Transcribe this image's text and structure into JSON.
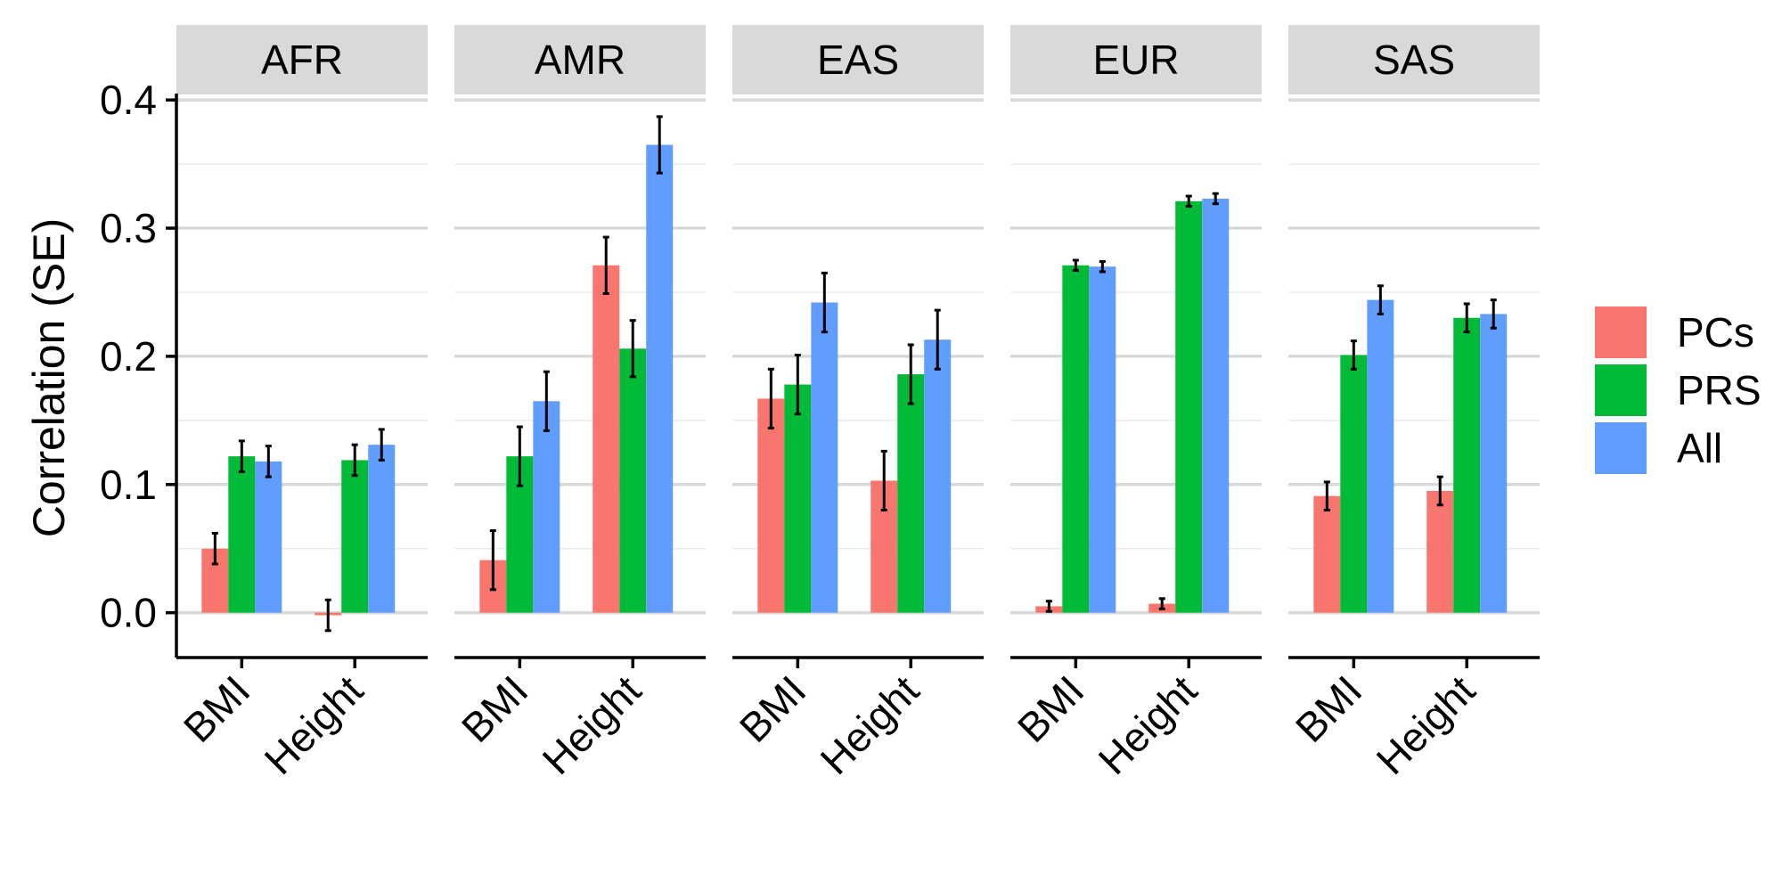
{
  "chart_data": {
    "type": "bar",
    "ylabel": "Correlation (SE)",
    "ylim": [
      -0.035,
      0.405
    ],
    "yticks": [
      0.0,
      0.1,
      0.2,
      0.3,
      0.4
    ],
    "ytick_labels": [
      "0.0",
      "0.1",
      "0.2",
      "0.3",
      "0.4"
    ],
    "grid": true,
    "legend_position": "right",
    "categories": [
      "BMI",
      "Height"
    ],
    "series_names": [
      "PCs",
      "PRS",
      "All"
    ],
    "colors": {
      "PCs": "#F8766D",
      "PRS": "#00BA38",
      "All": "#619CFF"
    },
    "facets": [
      {
        "label": "AFR",
        "values": {
          "BMI": [
            0.05,
            0.122,
            0.118
          ],
          "Height": [
            -0.002,
            0.119,
            0.131
          ]
        },
        "se": {
          "BMI": [
            0.012,
            0.012,
            0.012
          ],
          "Height": [
            0.012,
            0.012,
            0.012
          ]
        }
      },
      {
        "label": "AMR",
        "values": {
          "BMI": [
            0.041,
            0.122,
            0.165
          ],
          "Height": [
            0.271,
            0.206,
            0.365
          ]
        },
        "se": {
          "BMI": [
            0.023,
            0.023,
            0.023
          ],
          "Height": [
            0.022,
            0.022,
            0.022
          ]
        }
      },
      {
        "label": "EAS",
        "values": {
          "BMI": [
            0.167,
            0.178,
            0.242
          ],
          "Height": [
            0.103,
            0.186,
            0.213
          ]
        },
        "se": {
          "BMI": [
            0.023,
            0.023,
            0.023
          ],
          "Height": [
            0.023,
            0.023,
            0.023
          ]
        }
      },
      {
        "label": "EUR",
        "values": {
          "BMI": [
            0.005,
            0.271,
            0.27
          ],
          "Height": [
            0.007,
            0.321,
            0.323
          ]
        },
        "se": {
          "BMI": [
            0.004,
            0.004,
            0.004
          ],
          "Height": [
            0.004,
            0.004,
            0.004
          ]
        }
      },
      {
        "label": "SAS",
        "values": {
          "BMI": [
            0.091,
            0.201,
            0.244
          ],
          "Height": [
            0.095,
            0.23,
            0.233
          ]
        },
        "se": {
          "BMI": [
            0.011,
            0.011,
            0.011
          ],
          "Height": [
            0.011,
            0.011,
            0.011
          ]
        }
      }
    ]
  }
}
